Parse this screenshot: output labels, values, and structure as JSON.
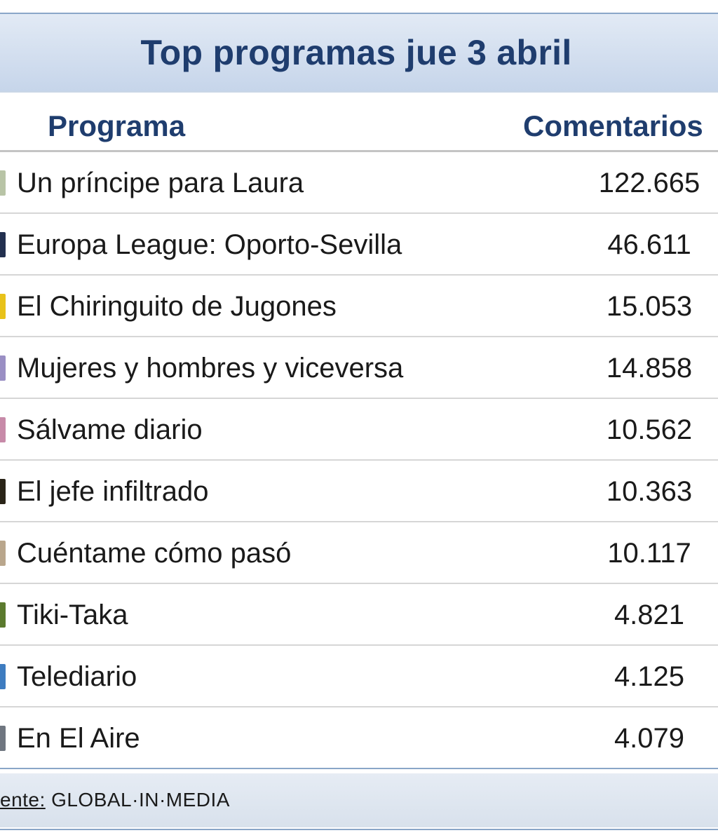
{
  "table": {
    "title": "Top programas jue 3 abril",
    "columns": [
      "Programa",
      "Comentarios"
    ],
    "rows": [
      {
        "programa": "Un príncipe para Laura",
        "comentarios": "122.665",
        "thumb_color": "#b8c4a6"
      },
      {
        "programa": "Europa League: Oporto-Sevilla",
        "comentarios": "46.611",
        "thumb_color": "#22304f"
      },
      {
        "programa": "El Chiringuito de Jugones",
        "comentarios": "15.053",
        "thumb_color": "#e8c21a"
      },
      {
        "programa": "Mujeres y hombres y viceversa",
        "comentarios": "14.858",
        "thumb_color": "#9a8fc4"
      },
      {
        "programa": "Sálvame diario",
        "comentarios": "10.562",
        "thumb_color": "#c78aa8"
      },
      {
        "programa": "El jefe infiltrado",
        "comentarios": "10.363",
        "thumb_color": "#2a2418"
      },
      {
        "programa": "Cuéntame cómo pasó",
        "comentarios": "10.117",
        "thumb_color": "#b9a68c"
      },
      {
        "programa": "Tiki-Taka",
        "comentarios": "4.821",
        "thumb_color": "#5b7a2e"
      },
      {
        "programa": "Telediario",
        "comentarios": "4.125",
        "thumb_color": "#3e7cc0"
      },
      {
        "programa": "En El Aire",
        "comentarios": "4.079",
        "thumb_color": "#6f7680"
      }
    ],
    "source_label": "ente:",
    "source_value": "GLOBAL·IN·MEDIA"
  },
  "colors": {
    "title_text": "#1f3d6e",
    "title_bar": "#c6d5ea",
    "border": "#8aa6c8"
  }
}
